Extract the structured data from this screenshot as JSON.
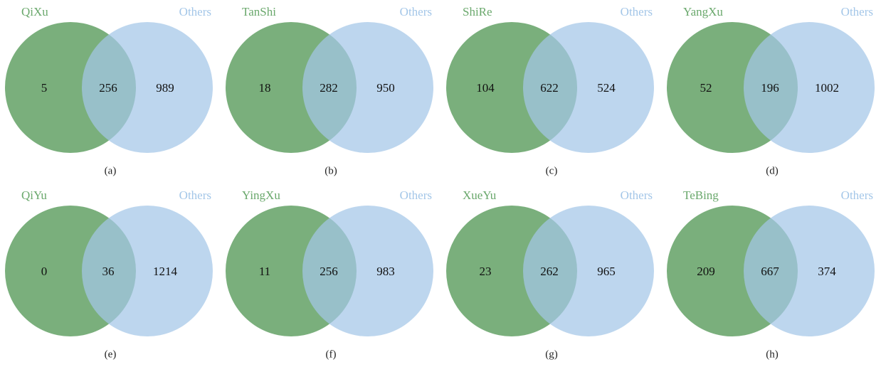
{
  "panels": [
    {
      "left_label": "QiXu",
      "right_label": "Others",
      "left_only": 5,
      "both": 256,
      "right_only": 989,
      "caption": "(a)"
    },
    {
      "left_label": "TanShi",
      "right_label": "Others",
      "left_only": 18,
      "both": 282,
      "right_only": 950,
      "caption": "(b)"
    },
    {
      "left_label": "ShiRe",
      "right_label": "Others",
      "left_only": 104,
      "both": 622,
      "right_only": 524,
      "caption": "(c)"
    },
    {
      "left_label": "YangXu",
      "right_label": "Others",
      "left_only": 52,
      "both": 196,
      "right_only": 1002,
      "caption": "(d)"
    },
    {
      "left_label": "QiYu",
      "right_label": "Others",
      "left_only": 0,
      "both": 36,
      "right_only": 1214,
      "caption": "(e)"
    },
    {
      "left_label": "YingXu",
      "right_label": "Others",
      "left_only": 11,
      "both": 256,
      "right_only": 983,
      "caption": "(f)"
    },
    {
      "left_label": "XueYu",
      "right_label": "Others",
      "left_only": 23,
      "both": 262,
      "right_only": 965,
      "caption": "(g)"
    },
    {
      "left_label": "TeBing",
      "right_label": "Others",
      "left_only": 209,
      "both": 667,
      "right_only": 374,
      "caption": "(h)"
    }
  ]
}
